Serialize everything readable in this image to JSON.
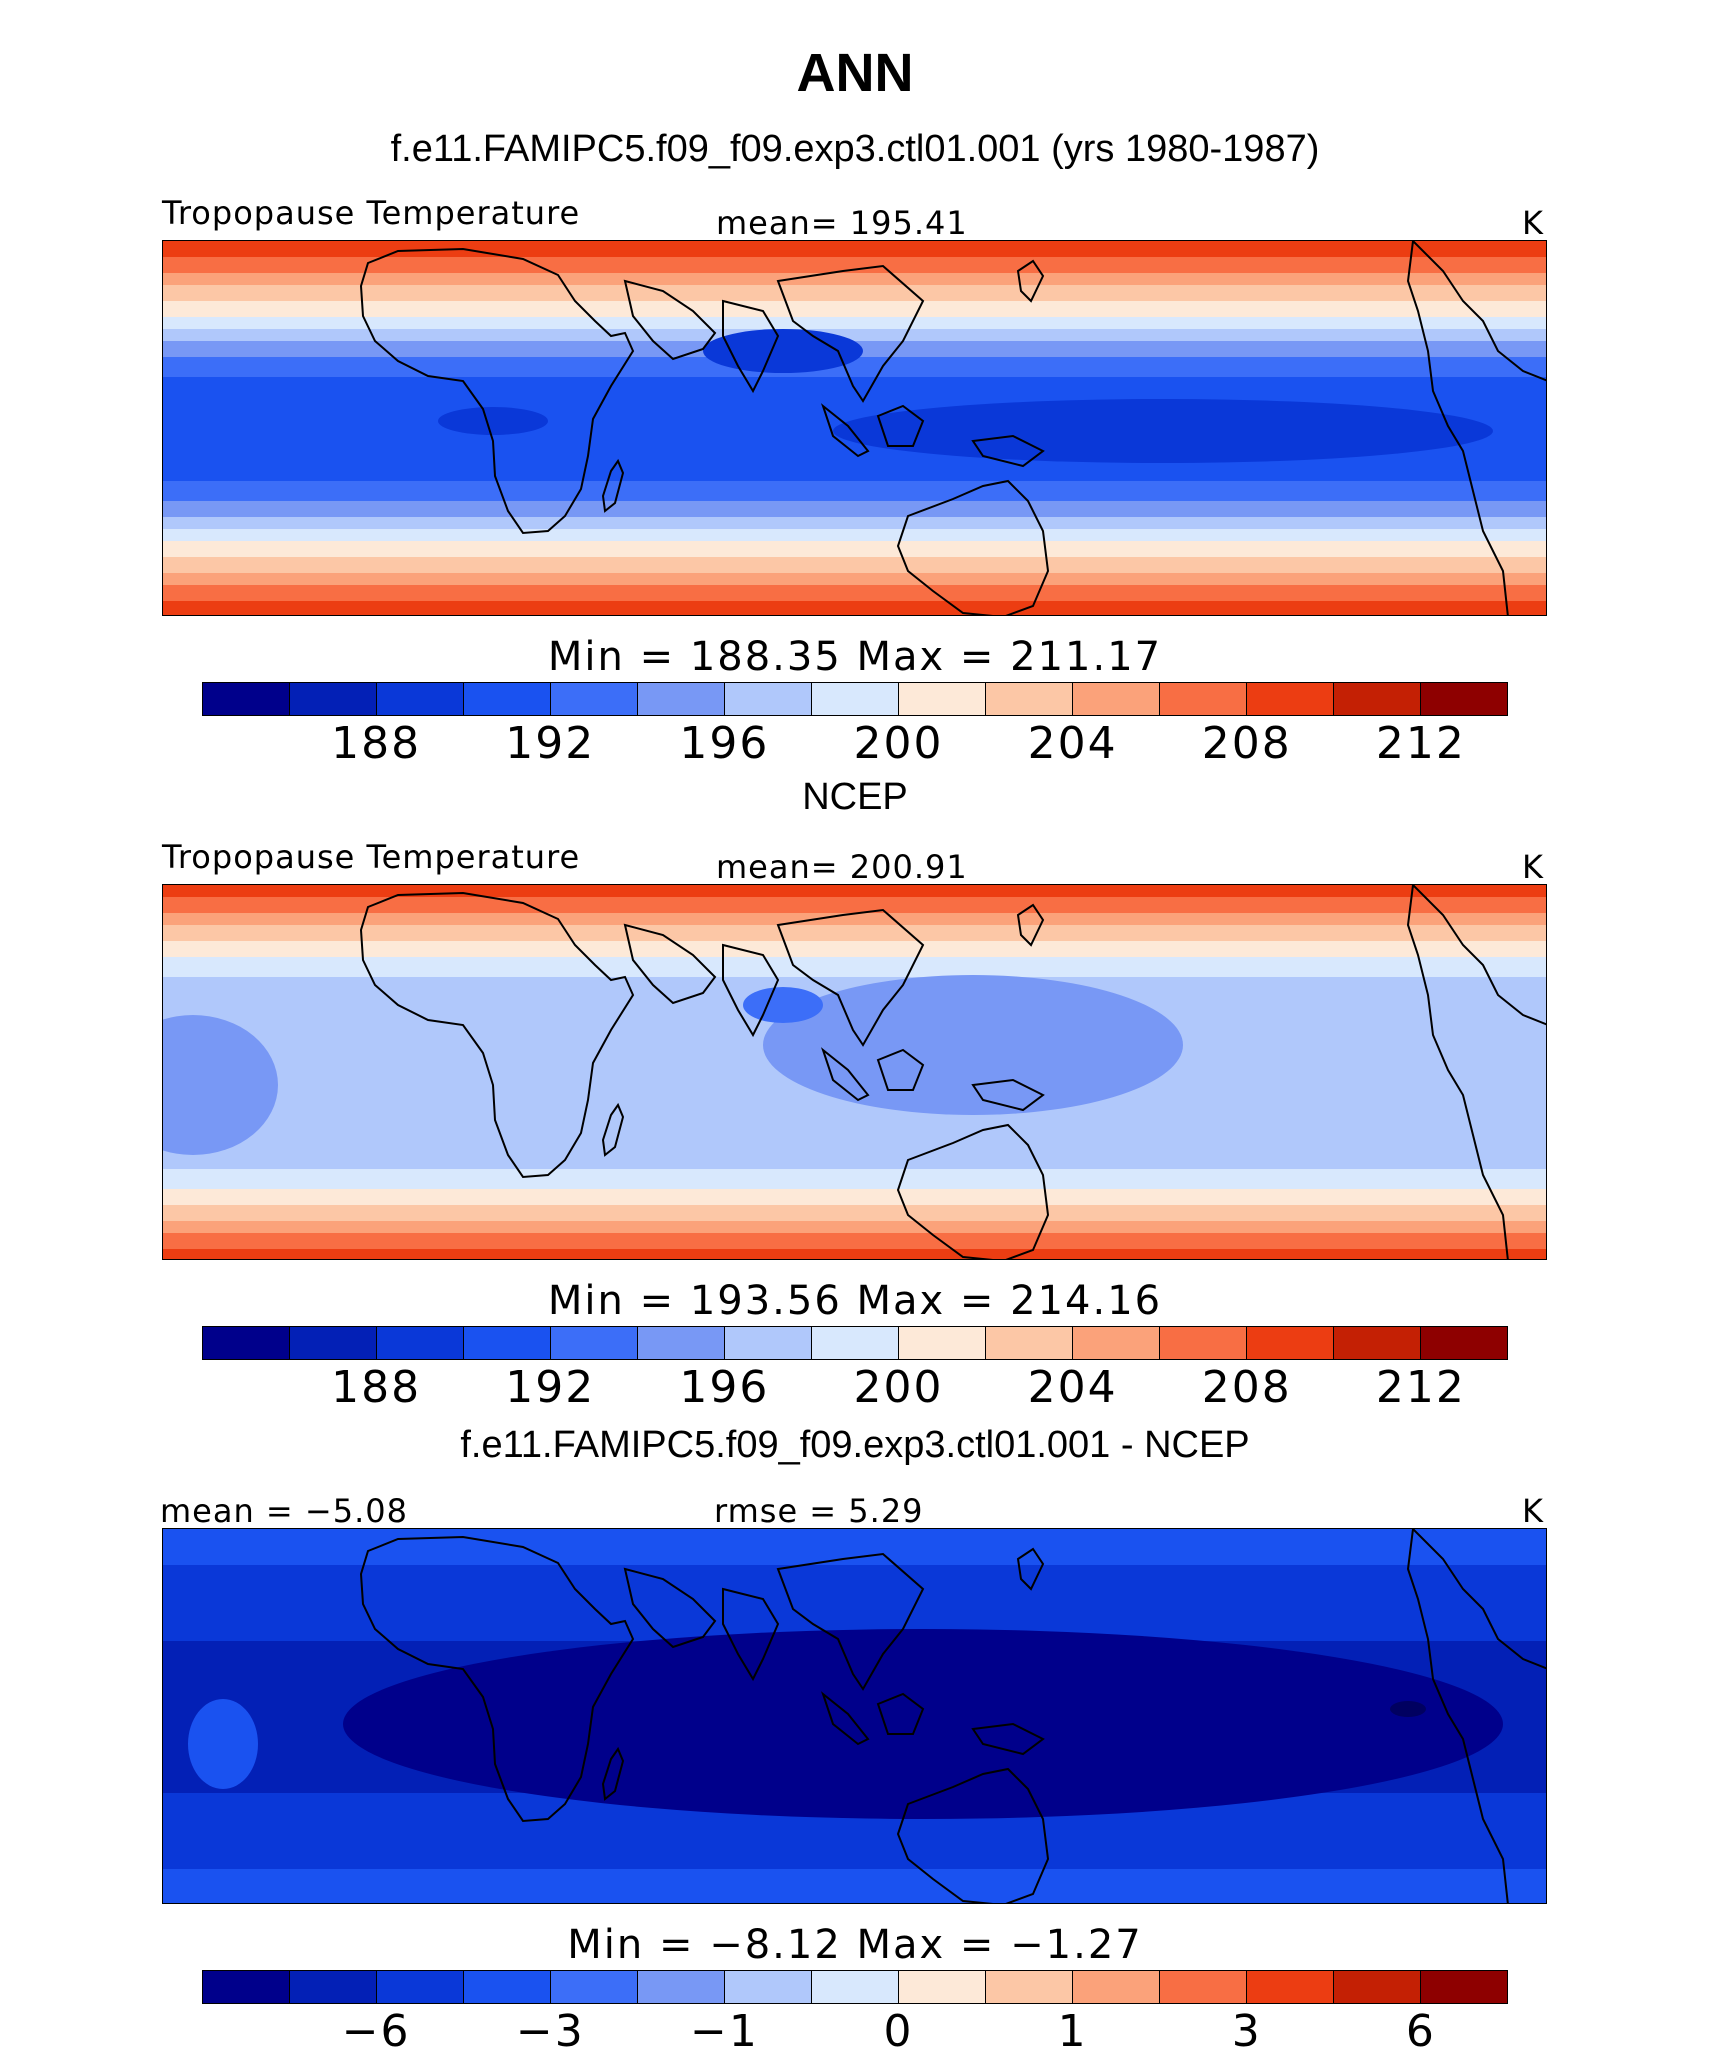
{
  "header": {
    "title": "ANN",
    "subtitle": "f.e11.FAMIPC5.f09_f09.exp3.ctl01.001 (yrs 1980-1987)"
  },
  "palette": [
    "#00008b",
    "#0320b6",
    "#0a38d8",
    "#1a52f0",
    "#3c6ef8",
    "#7898f5",
    "#b0c8fb",
    "#d8e8fd",
    "#fde9d8",
    "#fcc7a6",
    "#fba27a",
    "#f86e44",
    "#ec3d12",
    "#c42004",
    "#8e0000"
  ],
  "panels": [
    {
      "top_left": "Tropopause Temperature",
      "top_center": "mean= 195.41",
      "units": "K",
      "min_max": "Min = 188.35 Max = 211.17",
      "ticks": [
        "188",
        "192",
        "196",
        "200",
        "204",
        "208",
        "212"
      ],
      "pattern": "model",
      "field_range": [
        188.35,
        211.17
      ],
      "mean": 195.41
    },
    {
      "section_title": "NCEP",
      "top_left": "Tropopause Temperature",
      "top_center": "mean= 200.91",
      "units": "K",
      "min_max": "Min = 193.56 Max = 214.16",
      "ticks": [
        "188",
        "192",
        "196",
        "200",
        "204",
        "208",
        "212"
      ],
      "pattern": "obs",
      "field_range": [
        193.56,
        214.16
      ],
      "mean": 200.91
    },
    {
      "section_title": "f.e11.FAMIPC5.f09_f09.exp3.ctl01.001 - NCEP",
      "top_left": "mean =   −5.08",
      "top_center": "rmse =     5.29",
      "units": "K",
      "min_max": "Min =   −8.12 Max =   −1.27",
      "ticks": [
        "−6",
        "−3",
        "−1",
        "0",
        "1",
        "3",
        "6"
      ],
      "pattern": "diff",
      "field_range": [
        -8.12,
        -1.27
      ],
      "mean": -5.08,
      "rmse": 5.29
    }
  ]
}
